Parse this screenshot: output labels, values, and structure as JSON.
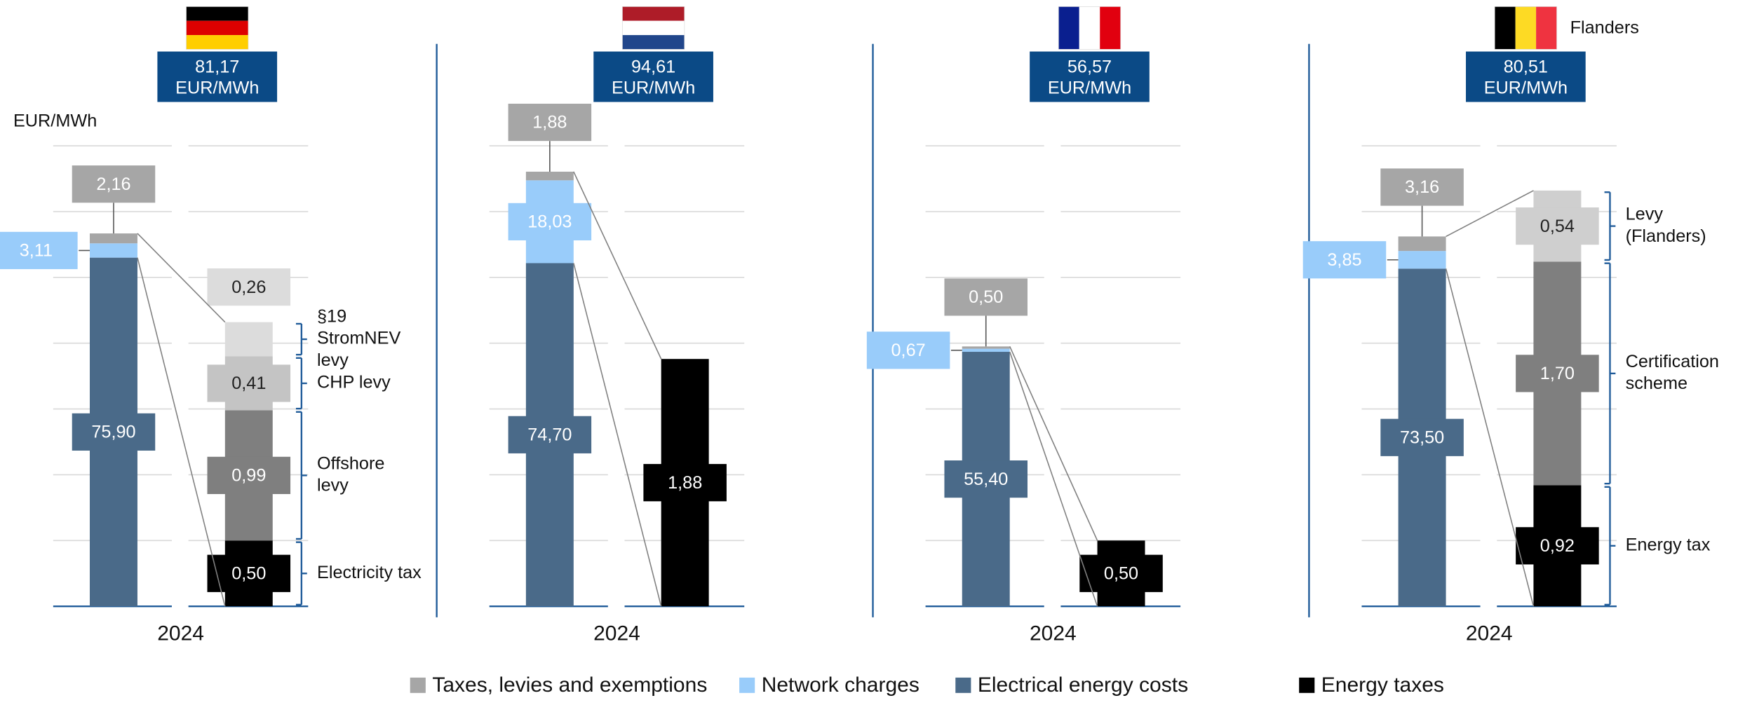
{
  "unit": "EUR/MWh",
  "legend": {
    "labels": [
      "Taxes, levies and exemptions",
      "Network charges",
      "Electrical energy costs",
      "Energy taxes"
    ],
    "colors": [
      "#a6a6a6",
      "#99ccfa",
      "#4a6a89",
      "#000000"
    ]
  },
  "chart_data": [
    {
      "type": "stacked_bar_breakdown",
      "flag": {
        "orientation": "horizontal",
        "colors": [
          "#000000",
          "#dd0000",
          "#ffce00"
        ]
      },
      "total": 81.17,
      "total_label": "81,17",
      "categories": [
        "2024"
      ],
      "ylim": [
        0,
        100
      ],
      "y2lim": [
        0,
        3.5
      ],
      "y2ticks": [
        0,
        0.5,
        1,
        1.5,
        2,
        2.5,
        3,
        3.5
      ],
      "grid": true,
      "series": [
        {
          "color": "#4a6a89",
          "values": [
            75.9
          ],
          "value_labels": [
            "75,90"
          ]
        },
        {
          "color": "#99ccfa",
          "values": [
            3.11
          ],
          "value_labels": [
            "3,11"
          ]
        },
        {
          "color": "#a6a6a6",
          "values": [
            2.16
          ],
          "value_labels": [
            "2,16"
          ]
        }
      ],
      "breakdown": [
        {
          "color": "#000000",
          "values": [
            0.5
          ],
          "value_labels": [
            "0,50"
          ],
          "name_lines": [
            "Electricity tax"
          ]
        },
        {
          "color": "#7f7f7f",
          "values": [
            0.99
          ],
          "value_labels": [
            "0,99"
          ],
          "name_lines": [
            "Offshore",
            "levy"
          ]
        },
        {
          "color": "#c4c4c4",
          "values": [
            0.41
          ],
          "value_labels": [
            "0,41"
          ],
          "name_lines": [
            "CHP levy"
          ]
        },
        {
          "color": "#dcdcdc",
          "values": [
            0.26
          ],
          "value_labels": [
            "0,26"
          ],
          "name_lines": [
            "§19",
            "StromNEV",
            "levy"
          ]
        }
      ]
    },
    {
      "type": "stacked_bar_breakdown",
      "flag": {
        "orientation": "horizontal",
        "colors": [
          "#ae1c28",
          "#ffffff",
          "#21468b"
        ]
      },
      "total": 94.61,
      "total_label": "94,61",
      "categories": [
        "2024"
      ],
      "ylim": [
        0,
        100
      ],
      "y2lim": [
        0,
        3.5
      ],
      "y2ticks": [
        0,
        0.5,
        1,
        1.5,
        2,
        2.5,
        3,
        3.5
      ],
      "grid": true,
      "series": [
        {
          "color": "#4a6a89",
          "values": [
            74.7
          ],
          "value_labels": [
            "74,70"
          ]
        },
        {
          "color": "#99ccfa",
          "values": [
            18.03
          ],
          "value_labels": [
            "18,03"
          ]
        },
        {
          "color": "#a6a6a6",
          "values": [
            1.88
          ],
          "value_labels": [
            "1,88"
          ]
        }
      ],
      "breakdown": [
        {
          "color": "#000000",
          "values": [
            1.88
          ],
          "value_labels": [
            "1,88"
          ]
        }
      ]
    },
    {
      "type": "stacked_bar_breakdown",
      "flag": {
        "orientation": "vertical",
        "colors": [
          "#0a1f8f",
          "#ffffff",
          "#e1000f"
        ]
      },
      "total": 56.57,
      "total_label": "56,57",
      "categories": [
        "2024"
      ],
      "ylim": [
        0,
        100
      ],
      "y2lim": [
        0,
        3.5
      ],
      "y2ticks": [
        0,
        0.5,
        1,
        1.5,
        2,
        2.5,
        3,
        3.5
      ],
      "grid": true,
      "series": [
        {
          "color": "#4a6a89",
          "values": [
            55.4
          ],
          "value_labels": [
            "55,40"
          ]
        },
        {
          "color": "#99ccfa",
          "values": [
            0.67
          ],
          "value_labels": [
            "0,67"
          ]
        },
        {
          "color": "#a6a6a6",
          "values": [
            0.5
          ],
          "value_labels": [
            "0,50"
          ]
        }
      ],
      "breakdown": [
        {
          "color": "#000000",
          "values": [
            0.5
          ],
          "value_labels": [
            "0,50"
          ]
        }
      ]
    },
    {
      "type": "stacked_bar_breakdown",
      "title": "Flanders",
      "flag": {
        "orientation": "vertical",
        "colors": [
          "#000000",
          "#fdda24",
          "#ef3340"
        ]
      },
      "total": 80.51,
      "total_label": "80,51",
      "categories": [
        "2024"
      ],
      "ylim": [
        0,
        100
      ],
      "y2lim": [
        0,
        3.5
      ],
      "y2ticks": [
        0,
        0.5,
        1,
        1.5,
        2,
        2.5,
        3,
        3.5
      ],
      "grid": true,
      "series": [
        {
          "color": "#4a6a89",
          "values": [
            73.5
          ],
          "value_labels": [
            "73,50"
          ]
        },
        {
          "color": "#99ccfa",
          "values": [
            3.85
          ],
          "value_labels": [
            "3,85"
          ]
        },
        {
          "color": "#a6a6a6",
          "values": [
            3.16
          ],
          "value_labels": [
            "3,16"
          ]
        }
      ],
      "breakdown": [
        {
          "color": "#000000",
          "values": [
            0.92
          ],
          "value_labels": [
            "0,92"
          ],
          "name_lines": [
            "Energy tax"
          ]
        },
        {
          "color": "#7f7f7f",
          "values": [
            1.7
          ],
          "value_labels": [
            "1,70"
          ],
          "name_lines": [
            "Certification",
            "scheme"
          ]
        },
        {
          "color": "#cfcfcf",
          "values": [
            0.54
          ],
          "value_labels": [
            "0,54"
          ],
          "name_lines": [
            "Levy",
            "(Flanders)"
          ]
        }
      ]
    }
  ]
}
